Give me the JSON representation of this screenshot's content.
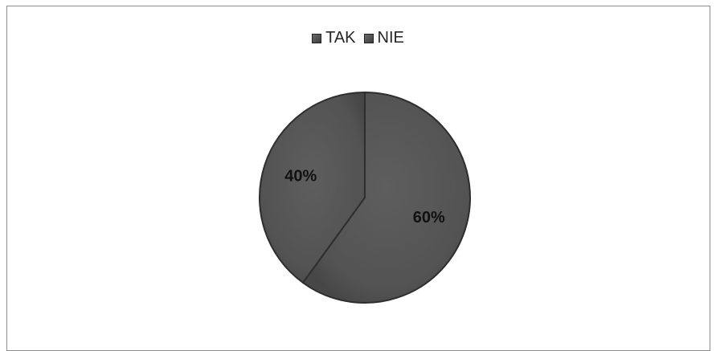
{
  "chart_data": {
    "type": "pie",
    "categories": [
      "TAK",
      "NIE"
    ],
    "values": [
      60,
      40
    ],
    "data_labels": [
      "60%",
      "40%"
    ],
    "legend_position": "top",
    "colors": [
      "#575757",
      "#575757"
    ]
  }
}
